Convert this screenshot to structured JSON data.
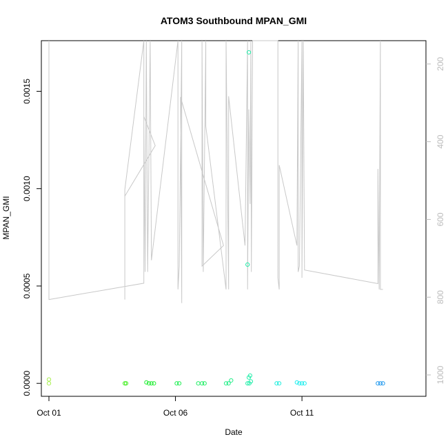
{
  "chart_data": {
    "type": "scatter",
    "title": "ATOM3 Southbound MPAN_GMI",
    "xlabel": "Date",
    "ylabel": "MPAN_GMI",
    "x_tick_labels": [
      "Oct 01",
      "Oct 06",
      "Oct 11"
    ],
    "x_ticks_day": [
      1,
      6,
      11
    ],
    "xlim_day": [
      0.7,
      15.9
    ],
    "ylim": [
      -6.65e-05,
      0.00176
    ],
    "y_tick_values": [
      0.0,
      0.0005,
      0.001,
      0.0015
    ],
    "y_tick_labels": [
      "0.0000",
      "0.0005",
      "0.0010",
      "0.0015"
    ],
    "y2_axis": {
      "ticks": [
        200,
        400,
        600,
        800,
        1000
      ],
      "tick_labels": [
        "200",
        "400",
        "600",
        "800",
        "1000"
      ],
      "direction": "reversed",
      "lim": [
        140,
        1055
      ],
      "color": "#bbbbbb"
    },
    "grid": false,
    "legend": "none",
    "series": [
      {
        "kind": "points",
        "points": [
          {
            "x": 1.0,
            "y": 2e-05,
            "color": "#a8f050"
          },
          {
            "x": 1.0,
            "y": 0.0,
            "color": "#a8f050"
          },
          {
            "x": 4.0,
            "y": 0.0,
            "color": "#44ee22"
          },
          {
            "x": 4.05,
            "y": 0.0,
            "color": "#44ee22"
          },
          {
            "x": 4.85,
            "y": 5e-06,
            "color": "#22ee33"
          },
          {
            "x": 4.95,
            "y": 0.0,
            "color": "#22ee33"
          },
          {
            "x": 5.05,
            "y": 0.0,
            "color": "#22ee33"
          },
          {
            "x": 5.15,
            "y": 0.0,
            "color": "#22ee33"
          },
          {
            "x": 6.05,
            "y": 0.0,
            "color": "#22ee55"
          },
          {
            "x": 6.15,
            "y": 0.0,
            "color": "#22ee55"
          },
          {
            "x": 6.9,
            "y": 0.0,
            "color": "#22ee66"
          },
          {
            "x": 7.05,
            "y": 0.0,
            "color": "#22ee66"
          },
          {
            "x": 7.15,
            "y": 0.0,
            "color": "#22ee66"
          },
          {
            "x": 8.0,
            "y": 0.0,
            "color": "#22ee88"
          },
          {
            "x": 8.1,
            "y": 0.0,
            "color": "#22ee88"
          },
          {
            "x": 8.2,
            "y": 1.5e-05,
            "color": "#22ee88"
          },
          {
            "x": 8.85,
            "y": 0.0,
            "color": "#22eeaa"
          },
          {
            "x": 8.9,
            "y": 3e-05,
            "color": "#22eeaa"
          },
          {
            "x": 8.95,
            "y": 4e-05,
            "color": "#22eeaa"
          },
          {
            "x": 8.98,
            "y": 1e-05,
            "color": "#22eeaa"
          },
          {
            "x": 8.92,
            "y": 0.0,
            "color": "#22eeaa"
          },
          {
            "x": 8.85,
            "y": 0.00061,
            "color": "#22eeaa"
          },
          {
            "x": 8.9,
            "y": 0.0017,
            "color": "#22eeaa"
          },
          {
            "x": 10.0,
            "y": 0.0,
            "color": "#22eedd"
          },
          {
            "x": 10.1,
            "y": 0.0,
            "color": "#22eedd"
          },
          {
            "x": 10.8,
            "y": 5e-06,
            "color": "#22eeee"
          },
          {
            "x": 10.9,
            "y": 0.0,
            "color": "#22eeee"
          },
          {
            "x": 11.0,
            "y": 0.0,
            "color": "#22eeee"
          },
          {
            "x": 11.1,
            "y": 0.0,
            "color": "#22eeee"
          },
          {
            "x": 14.0,
            "y": 0.0,
            "color": "#2299ee"
          },
          {
            "x": 14.1,
            "y": 0.0,
            "color": "#2299ee"
          },
          {
            "x": 14.2,
            "y": 0.0,
            "color": "#2299ee"
          }
        ]
      },
      {
        "kind": "line",
        "axis": "y2",
        "color": "#c8c8c8",
        "points": [
          {
            "x": 1.0,
            "y": 140
          },
          {
            "x": 1.0,
            "y": 806
          },
          {
            "x": 4.75,
            "y": 764
          },
          {
            "x": 4.75,
            "y": 140
          },
          {
            "x": 4.0,
            "y": 523
          },
          {
            "x": 4.0,
            "y": 806
          },
          {
            "x": 4.0,
            "y": 540
          },
          {
            "x": 5.2,
            "y": 410
          },
          {
            "x": 4.75,
            "y": 335
          },
          {
            "x": 4.8,
            "y": 735
          },
          {
            "x": 4.85,
            "y": 140
          },
          {
            "x": 4.9,
            "y": 735
          },
          {
            "x": 5.0,
            "y": 140
          },
          {
            "x": 5.05,
            "y": 705
          },
          {
            "x": 6.1,
            "y": 140
          },
          {
            "x": 6.1,
            "y": 780
          },
          {
            "x": 6.15,
            "y": 720
          },
          {
            "x": 6.25,
            "y": 140
          },
          {
            "x": 6.25,
            "y": 815
          },
          {
            "x": 6.2,
            "y": 285
          },
          {
            "x": 7.9,
            "y": 667
          },
          {
            "x": 7.05,
            "y": 720
          },
          {
            "x": 7.05,
            "y": 140
          },
          {
            "x": 7.1,
            "y": 735
          },
          {
            "x": 7.2,
            "y": 140
          },
          {
            "x": 7.2,
            "y": 360
          },
          {
            "x": 8.0,
            "y": 780
          },
          {
            "x": 8.0,
            "y": 140
          },
          {
            "x": 8.1,
            "y": 780
          },
          {
            "x": 8.1,
            "y": 283
          },
          {
            "x": 8.75,
            "y": 667
          },
          {
            "x": 8.85,
            "y": 140
          },
          {
            "x": 8.85,
            "y": 780
          },
          {
            "x": 8.9,
            "y": 317
          },
          {
            "x": 8.95,
            "y": 560
          },
          {
            "x": 8.98,
            "y": 140
          },
          {
            "x": 9.0,
            "y": 735
          },
          {
            "x": 9.05,
            "y": 140
          },
          {
            "x": 10.05,
            "y": 140
          },
          {
            "x": 10.05,
            "y": 750
          },
          {
            "x": 10.1,
            "y": 780
          },
          {
            "x": 10.1,
            "y": 460
          },
          {
            "x": 10.8,
            "y": 667
          },
          {
            "x": 10.85,
            "y": 140
          },
          {
            "x": 10.85,
            "y": 735
          },
          {
            "x": 10.9,
            "y": 720
          },
          {
            "x": 11.0,
            "y": 140
          },
          {
            "x": 11.0,
            "y": 750
          },
          {
            "x": 11.05,
            "y": 140
          },
          {
            "x": 11.1,
            "y": 730
          },
          {
            "x": 14.0,
            "y": 765
          },
          {
            "x": 14.0,
            "y": 470
          },
          {
            "x": 14.05,
            "y": 780
          },
          {
            "x": 14.1,
            "y": 140
          },
          {
            "x": 14.1,
            "y": 780
          },
          {
            "x": 14.2,
            "y": 780
          }
        ]
      }
    ]
  }
}
